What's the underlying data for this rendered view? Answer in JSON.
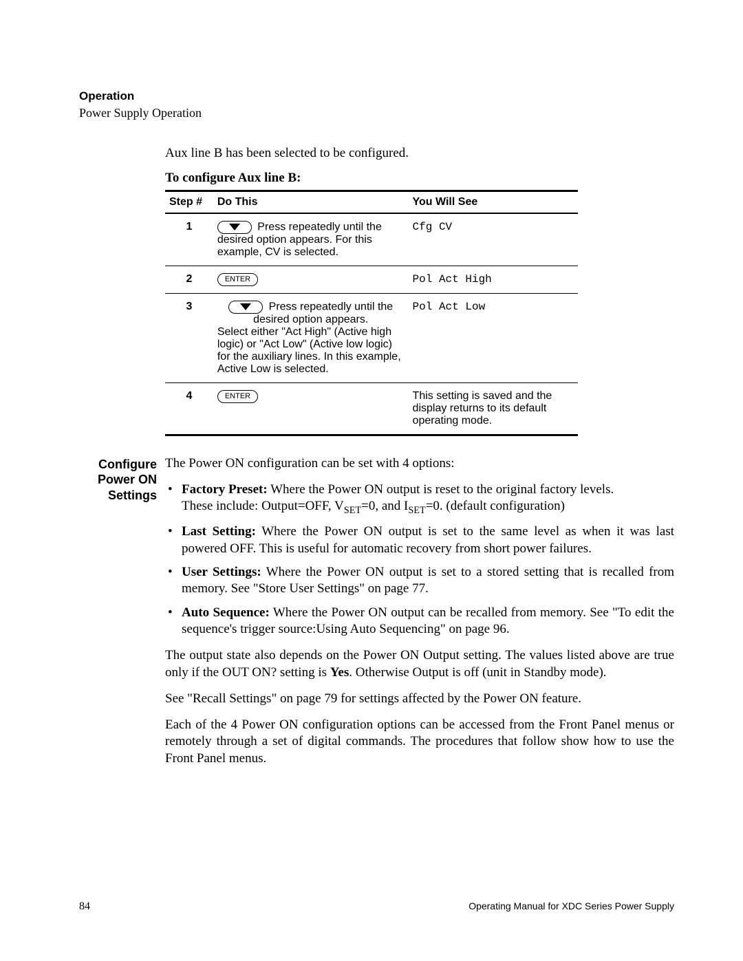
{
  "header": {
    "section": "Operation",
    "subsection": "Power Supply Operation"
  },
  "intro": "Aux line B has been selected to be configured.",
  "config_heading": "To configure Aux line B:",
  "table": {
    "headers": {
      "step": "Step #",
      "do": "Do This",
      "see": "You Will See"
    },
    "enter_label": "ENTER",
    "rows": [
      {
        "num": "1",
        "icon": "down",
        "do_after": "Press repeatedly until the desired option appears. For this example, CV is selected.",
        "see": "Cfg CV"
      },
      {
        "num": "2",
        "icon": "enter",
        "do_after": "",
        "see": "Pol Act High"
      },
      {
        "num": "3",
        "icon": "down",
        "do_after": "Press repeatedly until the desired option appears.",
        "do_extra": "Select either \"Act High\" (Active high logic) or \"Act Low\" (Active low logic) for the auxiliary lines. In this example, Active Low is selected.",
        "see": "Pol Act Low"
      },
      {
        "num": "4",
        "icon": "enter",
        "do_after": "",
        "see_plain": "This setting is saved and the display returns to its default operating mode."
      }
    ]
  },
  "margin_label": "Configure Power ON Settings",
  "section": {
    "lead": "The Power ON configuration can be set with 4 options:",
    "opts": [
      {
        "bold": "Factory Preset:",
        "rest": " Where the Power ON output is reset to the original factory levels.",
        "line2_pre": "These include: Output=OFF, V",
        "line2_sub1": "SET",
        "line2_mid": "=0, and I",
        "line2_sub2": "SET",
        "line2_post": "=0. (default configuration)"
      },
      {
        "bold": "Last Setting:",
        "rest": " Where the Power ON output is set to the same level as when it was last powered OFF. This is useful for automatic recovery from short power failures."
      },
      {
        "bold": "User Settings:",
        "rest": " Where the Power ON output is set to a stored setting that is recalled from memory. See \"Store User Settings\" on page 77."
      },
      {
        "bold": "Auto Sequence:",
        "rest": " Where the Power ON output can be recalled from memory. See \"To edit the sequence's trigger source:Using Auto Sequencing\" on page 96."
      }
    ],
    "paras": [
      "The output state also depends on the Power ON Output setting. The values listed above are true only if the OUT ON? setting is Yes. Otherwise Output is off (unit in Standby mode).",
      "See \"Recall Settings\" on page 79 for settings affected by the Power ON feature.",
      "Each of the 4 Power ON configuration options can be accessed from the Front Panel menus or remotely through a set of digital commands. The procedures that follow show how to use the Front Panel menus."
    ],
    "para0_bold_word": "Yes"
  },
  "footer": {
    "page": "84",
    "title": "Operating Manual for XDC Series Power Supply"
  }
}
